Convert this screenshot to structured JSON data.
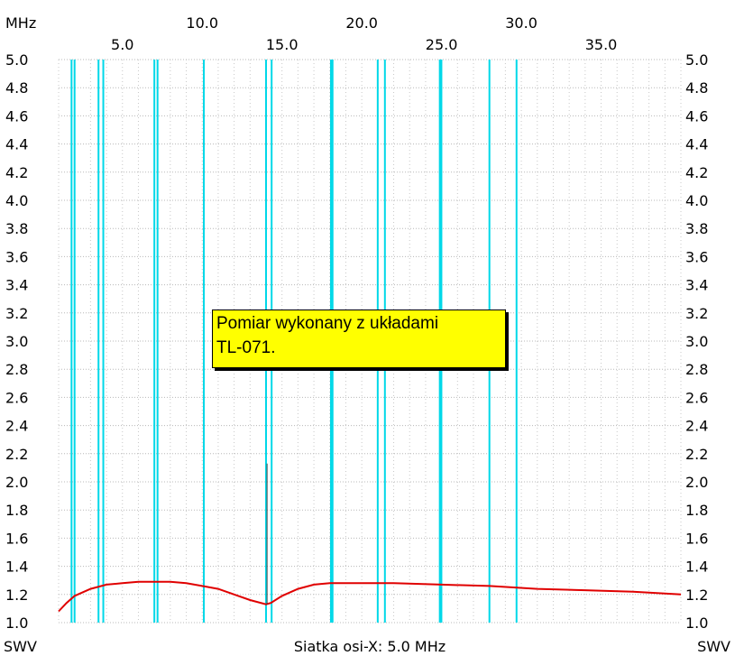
{
  "chart_data": {
    "type": "line",
    "x_unit": "MHz",
    "y_unit_left": "SWV",
    "y_unit_right": "SWV",
    "footer": "Siatka osi-X: 5.0 MHz",
    "xlim": [
      1.0,
      40.0
    ],
    "ylim": [
      1.0,
      5.0
    ],
    "x_ticks_top": [
      "10.0",
      "20.0",
      "30.0"
    ],
    "x_ticks_bottom": [
      "5.0",
      "15.0",
      "25.0",
      "35.0"
    ],
    "y_ticks": [
      "5.0",
      "4.8",
      "4.6",
      "4.4",
      "4.2",
      "4.0",
      "3.8",
      "3.6",
      "3.4",
      "3.2",
      "3.0",
      "2.8",
      "2.6",
      "2.4",
      "2.2",
      "2.0",
      "1.8",
      "1.6",
      "1.4",
      "1.2",
      "1.0"
    ],
    "grid": true,
    "band_markers_mhz": [
      1.81,
      2.0,
      3.5,
      3.8,
      7.0,
      7.2,
      10.1,
      14.0,
      14.35,
      18.068,
      18.168,
      21.0,
      21.45,
      24.89,
      24.99,
      28.0,
      29.7
    ],
    "band_marker_color": "#00d8e8",
    "series": [
      {
        "color": "#e00000",
        "x": [
          1.0,
          1.5,
          2.0,
          3.0,
          4.0,
          5.0,
          6.0,
          7.0,
          8.0,
          9.0,
          10.0,
          11.0,
          12.0,
          13.0,
          14.0,
          14.3,
          15.0,
          16.0,
          17.0,
          18.0,
          20.0,
          22.0,
          25.0,
          28.0,
          31.0,
          34.0,
          37.0,
          40.0
        ],
        "values": [
          1.08,
          1.14,
          1.19,
          1.24,
          1.27,
          1.28,
          1.29,
          1.29,
          1.29,
          1.28,
          1.26,
          1.24,
          1.2,
          1.16,
          1.13,
          1.14,
          1.19,
          1.24,
          1.27,
          1.28,
          1.28,
          1.28,
          1.27,
          1.26,
          1.24,
          1.23,
          1.22,
          1.2
        ]
      },
      {
        "color": "#404040",
        "x": [
          14.06,
          14.06
        ],
        "values": [
          1.13,
          2.13
        ]
      }
    ],
    "annotation": {
      "lines": [
        "Pomiar wykonany z układami",
        "TL-071."
      ],
      "background": "#ffff00"
    }
  }
}
